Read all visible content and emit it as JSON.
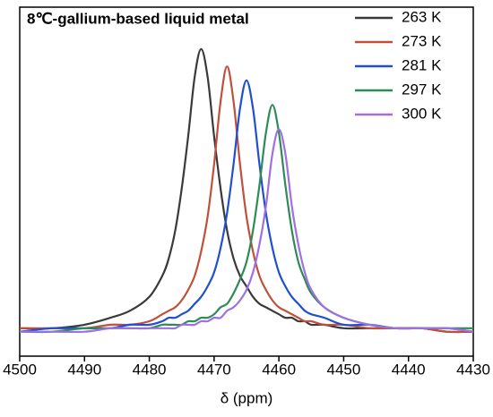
{
  "chart_data": {
    "type": "line",
    "title": "8℃-gallium-based liquid metal",
    "x_label": "δ (ppm)",
    "x": [
      4500,
      4495,
      4490,
      4486,
      4483,
      4480,
      4478,
      4477,
      4476,
      4475,
      4474,
      4473,
      4472,
      4471,
      4470,
      4469,
      4468,
      4467,
      4466,
      4465,
      4464,
      4463,
      4462,
      4461,
      4460,
      4459,
      4458,
      4457,
      4456,
      4455,
      4453,
      4450,
      4446,
      4442,
      4438,
      4434,
      4430
    ],
    "series": [
      {
        "name": "263 K",
        "color": "#3a3a3a",
        "values": [
          0.08,
          0.08,
          0.09,
          0.11,
          0.13,
          0.17,
          0.23,
          0.28,
          0.36,
          0.48,
          0.63,
          0.8,
          0.88,
          0.8,
          0.63,
          0.48,
          0.36,
          0.28,
          0.23,
          0.2,
          0.17,
          0.15,
          0.14,
          0.13,
          0.12,
          0.11,
          0.11,
          0.1,
          0.1,
          0.09,
          0.09,
          0.08,
          0.08,
          0.08,
          0.08,
          0.07,
          0.07
        ]
      },
      {
        "name": "273 K",
        "color": "#c0503a",
        "values": [
          0.08,
          0.08,
          0.08,
          0.09,
          0.09,
          0.1,
          0.12,
          0.13,
          0.14,
          0.16,
          0.19,
          0.23,
          0.3,
          0.4,
          0.55,
          0.73,
          0.83,
          0.73,
          0.55,
          0.4,
          0.3,
          0.23,
          0.19,
          0.16,
          0.14,
          0.13,
          0.12,
          0.11,
          0.1,
          0.1,
          0.09,
          0.09,
          0.08,
          0.08,
          0.08,
          0.07,
          0.07
        ]
      },
      {
        "name": "281 K",
        "color": "#2050d0",
        "values": [
          0.07,
          0.08,
          0.08,
          0.08,
          0.09,
          0.09,
          0.1,
          0.11,
          0.11,
          0.12,
          0.13,
          0.15,
          0.17,
          0.2,
          0.24,
          0.31,
          0.41,
          0.55,
          0.71,
          0.79,
          0.71,
          0.55,
          0.41,
          0.31,
          0.24,
          0.2,
          0.17,
          0.15,
          0.13,
          0.12,
          0.11,
          0.09,
          0.09,
          0.08,
          0.08,
          0.08,
          0.07
        ]
      },
      {
        "name": "297 K",
        "color": "#2e8b57",
        "values": [
          0.07,
          0.07,
          0.08,
          0.08,
          0.08,
          0.08,
          0.09,
          0.09,
          0.09,
          0.09,
          0.1,
          0.1,
          0.11,
          0.11,
          0.12,
          0.14,
          0.15,
          0.18,
          0.22,
          0.27,
          0.36,
          0.49,
          0.64,
          0.72,
          0.64,
          0.49,
          0.36,
          0.27,
          0.22,
          0.18,
          0.14,
          0.11,
          0.09,
          0.08,
          0.08,
          0.08,
          0.08
        ]
      },
      {
        "name": "300 K",
        "color": "#a070e0",
        "values": [
          0.07,
          0.07,
          0.07,
          0.08,
          0.08,
          0.08,
          0.08,
          0.08,
          0.08,
          0.09,
          0.09,
          0.09,
          0.1,
          0.1,
          0.11,
          0.11,
          0.13,
          0.14,
          0.16,
          0.19,
          0.24,
          0.32,
          0.43,
          0.58,
          0.65,
          0.58,
          0.43,
          0.32,
          0.24,
          0.19,
          0.14,
          0.11,
          0.09,
          0.08,
          0.08,
          0.08,
          0.07
        ]
      }
    ],
    "xlim": [
      4500,
      4430
    ],
    "xticks": [
      4500,
      4490,
      4480,
      4470,
      4460,
      4450,
      4440,
      4430
    ],
    "ylim": [
      0,
      1
    ],
    "legend": "top-right"
  }
}
